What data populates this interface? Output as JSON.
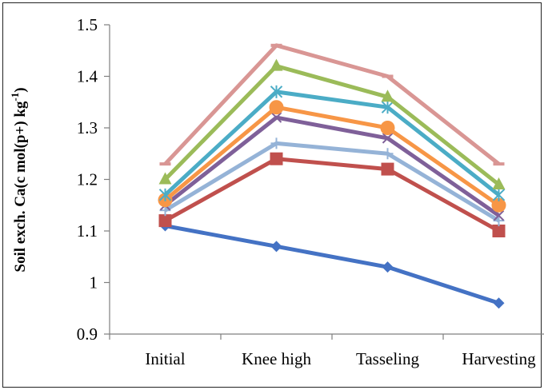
{
  "chart_data": {
    "type": "line",
    "title": "",
    "xlabel": "",
    "ylabel": "Soil exch. Ca(c mol(p+) kg",
    "ylabel_superscript": "-1",
    "ylabel_close": ")",
    "categories": [
      "Initial",
      "Knee high",
      "Tasseling",
      "Harvesting"
    ],
    "ylim": [
      0.9,
      1.5
    ],
    "yticks": [
      0.9,
      1,
      1.1,
      1.2,
      1.3,
      1.4,
      1.5
    ],
    "ytick_labels": [
      "0.9",
      "1",
      "1.1",
      "1.2",
      "1.3",
      "1.4",
      "1.5"
    ],
    "grid": false,
    "legend": "none",
    "series": [
      {
        "color": "#4472C4",
        "marker": "diamond",
        "values": [
          1.11,
          1.07,
          1.03,
          0.96
        ]
      },
      {
        "color": "#C0504D",
        "marker": "square",
        "values": [
          1.12,
          1.24,
          1.22,
          1.1
        ]
      },
      {
        "color": "#95B3D7",
        "marker": "plus",
        "values": [
          1.14,
          1.27,
          1.25,
          1.12
        ]
      },
      {
        "color": "#7F6099",
        "marker": "x",
        "values": [
          1.15,
          1.32,
          1.28,
          1.13
        ]
      },
      {
        "color": "#F79646",
        "marker": "circle",
        "values": [
          1.16,
          1.34,
          1.3,
          1.15
        ]
      },
      {
        "color": "#4BACC6",
        "marker": "star",
        "values": [
          1.17,
          1.37,
          1.34,
          1.17
        ]
      },
      {
        "color": "#9BBB59",
        "marker": "triangle",
        "values": [
          1.2,
          1.42,
          1.36,
          1.19
        ]
      },
      {
        "color": "#D99694",
        "marker": "dash",
        "values": [
          1.23,
          1.46,
          1.4,
          1.23
        ]
      }
    ]
  }
}
